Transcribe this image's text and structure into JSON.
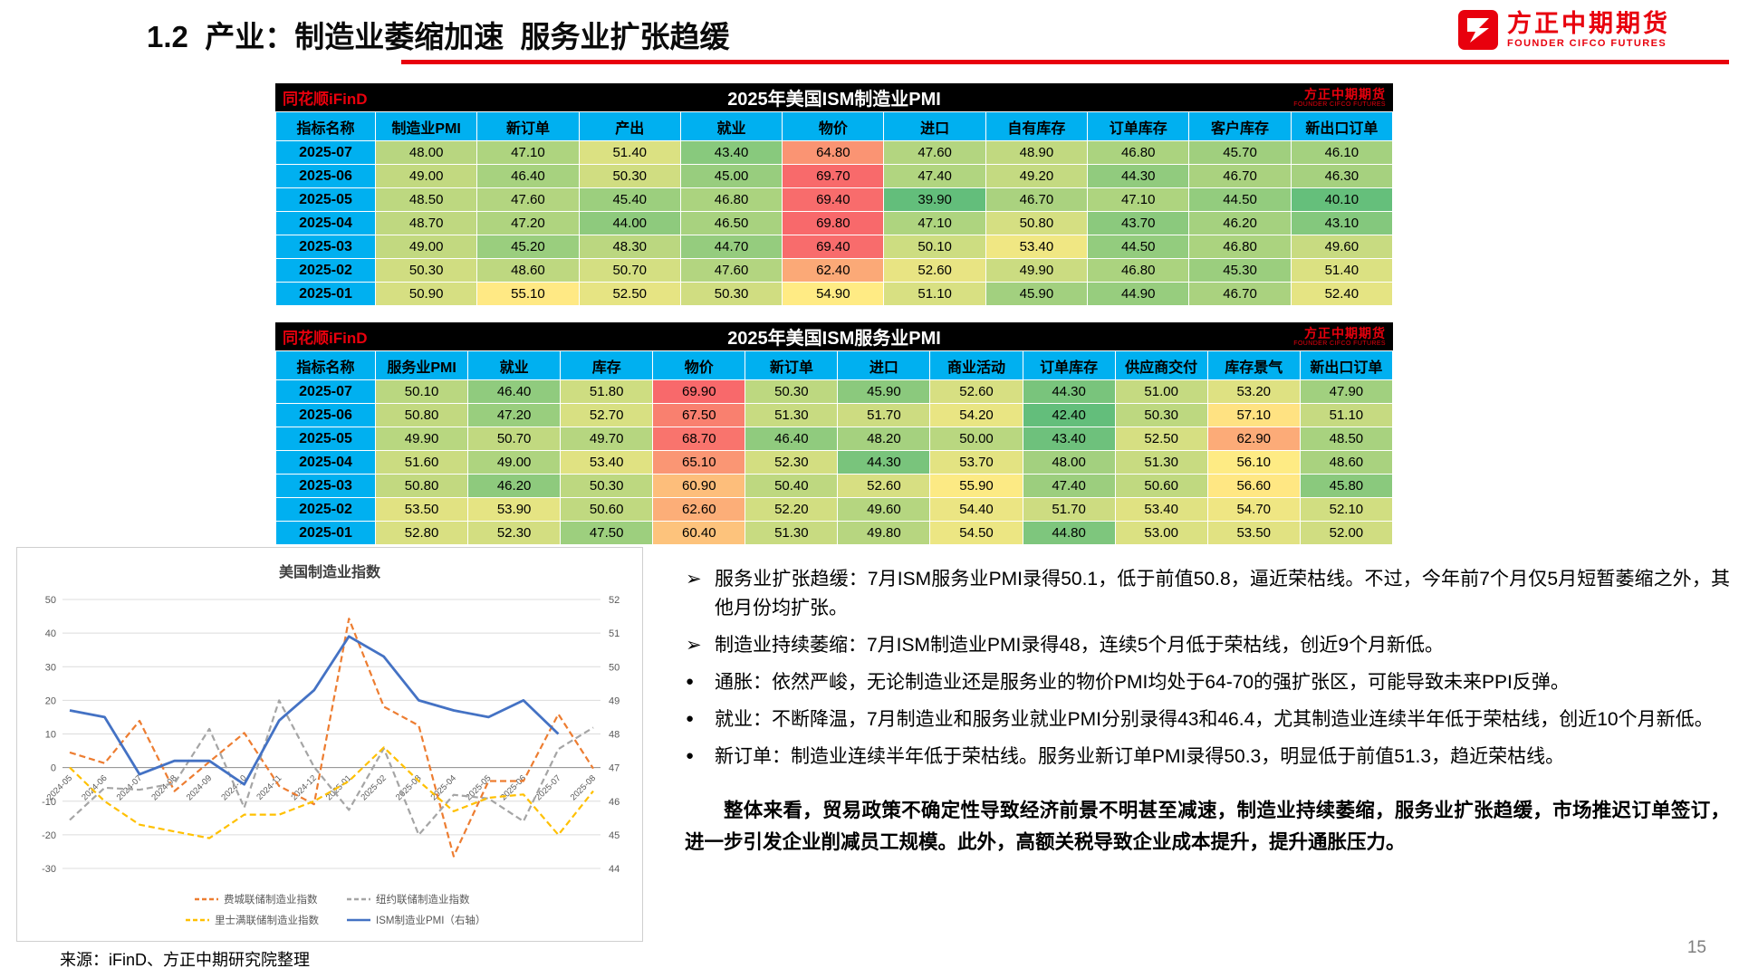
{
  "header": {
    "title": "1.2  产业：制造业萎缩加速  服务业扩张趋缓",
    "brand_cn": "方正中期期货",
    "brand_en": "FOUNDER CIFCO FUTURES",
    "accent_red": "#e8000d",
    "table_header_blue": "#00b0f0"
  },
  "tables": [
    {
      "watermark_left": "同花顺iFinD",
      "title": "2025年美国ISM制造业PMI",
      "watermark_right_cn": "方正中期期货",
      "watermark_right_en": "FOUNDER CIFCO FUTURES",
      "columns": [
        "指标名称",
        "制造业PMI",
        "新订单",
        "产出",
        "就业",
        "物价",
        "进口",
        "自有库存",
        "订单库存",
        "客户库存",
        "新出口订单"
      ],
      "rows": [
        {
          "label": "2025-07",
          "values": [
            48.0,
            47.1,
            51.4,
            43.4,
            64.8,
            47.6,
            48.9,
            46.8,
            45.7,
            46.1
          ]
        },
        {
          "label": "2025-06",
          "values": [
            49.0,
            46.4,
            50.3,
            45.0,
            69.7,
            47.4,
            49.2,
            44.3,
            46.7,
            46.3
          ]
        },
        {
          "label": "2025-05",
          "values": [
            48.5,
            47.6,
            45.4,
            46.8,
            69.4,
            39.9,
            46.7,
            47.1,
            44.5,
            40.1
          ]
        },
        {
          "label": "2025-04",
          "values": [
            48.7,
            47.2,
            44.0,
            46.5,
            69.8,
            47.1,
            50.8,
            43.7,
            46.2,
            43.1
          ]
        },
        {
          "label": "2025-03",
          "values": [
            49.0,
            45.2,
            48.3,
            44.7,
            69.4,
            50.1,
            53.4,
            44.5,
            46.8,
            49.6
          ]
        },
        {
          "label": "2025-02",
          "values": [
            50.3,
            48.6,
            50.7,
            47.6,
            62.4,
            52.6,
            49.9,
            46.8,
            45.3,
            51.4
          ]
        },
        {
          "label": "2025-01",
          "values": [
            50.9,
            55.1,
            52.5,
            50.3,
            54.9,
            51.1,
            45.9,
            44.9,
            46.7,
            52.4
          ]
        }
      ]
    },
    {
      "watermark_left": "同花顺iFinD",
      "title": "2025年美国ISM服务业PMI",
      "watermark_right_cn": "方正中期期货",
      "watermark_right_en": "FOUNDER CIFCO FUTURES",
      "columns": [
        "指标名称",
        "服务业PMI",
        "就业",
        "库存",
        "物价",
        "新订单",
        "进口",
        "商业活动",
        "订单库存",
        "供应商交付",
        "库存景气",
        "新出口订单"
      ],
      "rows": [
        {
          "label": "2025-07",
          "values": [
            50.1,
            46.4,
            51.8,
            69.9,
            50.3,
            45.9,
            52.6,
            44.3,
            51.0,
            53.2,
            47.9
          ]
        },
        {
          "label": "2025-06",
          "values": [
            50.8,
            47.2,
            52.7,
            67.5,
            51.3,
            51.7,
            54.2,
            42.4,
            50.3,
            57.1,
            51.1
          ]
        },
        {
          "label": "2025-05",
          "values": [
            49.9,
            50.7,
            49.7,
            68.7,
            46.4,
            48.2,
            50.0,
            43.4,
            52.5,
            62.9,
            48.5
          ]
        },
        {
          "label": "2025-04",
          "values": [
            51.6,
            49.0,
            53.4,
            65.1,
            52.3,
            44.3,
            53.7,
            48.0,
            51.3,
            56.1,
            48.6
          ]
        },
        {
          "label": "2025-03",
          "values": [
            50.8,
            46.2,
            50.3,
            60.9,
            50.4,
            52.6,
            55.9,
            47.4,
            50.6,
            56.6,
            45.8
          ]
        },
        {
          "label": "2025-02",
          "values": [
            53.5,
            53.9,
            50.6,
            62.6,
            52.2,
            49.6,
            54.4,
            51.7,
            53.4,
            54.7,
            52.1
          ]
        },
        {
          "label": "2025-01",
          "values": [
            52.8,
            52.3,
            47.5,
            60.4,
            51.3,
            49.8,
            54.5,
            44.8,
            53.0,
            53.5,
            52.0
          ]
        }
      ]
    }
  ],
  "chart_data": {
    "type": "line",
    "title": "美国制造业指数",
    "x": [
      "2024-05",
      "2024-06",
      "2024-07",
      "2024-08",
      "2024-09",
      "2024-10",
      "2024-11",
      "2024-12",
      "2025-01",
      "2025-02",
      "2025-03",
      "2025-04",
      "2025-05",
      "2025-06",
      "2025-07",
      "2025-08"
    ],
    "left_axis": {
      "min": -30,
      "max": 50,
      "step": 10
    },
    "right_axis": {
      "min": 44,
      "max": 52,
      "step": 1
    },
    "legend_position": "bottom",
    "series": [
      {
        "name": "费城联储制造业指数",
        "axis": "left",
        "color": "#ED7D31",
        "dash": true,
        "values": [
          4.5,
          1.3,
          13.9,
          -7.0,
          1.7,
          10.3,
          -5.5,
          -10.9,
          44.3,
          18.1,
          12.5,
          -26.4,
          -4.0,
          -4.0,
          15.9,
          -0.3
        ]
      },
      {
        "name": "纽约联储制造业指数",
        "axis": "left",
        "color": "#A5A5A5",
        "dash": true,
        "values": [
          -15.6,
          -6.0,
          -6.6,
          -4.7,
          11.5,
          -11.9,
          20.0,
          0.2,
          -12.6,
          5.7,
          -20.0,
          -8.1,
          -9.2,
          -16.0,
          5.5,
          11.9
        ]
      },
      {
        "name": "里士满联储制造业指数",
        "axis": "left",
        "color": "#FFC000",
        "dash": true,
        "values": [
          0,
          -10,
          -17,
          -19,
          -21,
          -14,
          -14,
          -10,
          -4,
          6,
          -4,
          -13,
          -9,
          -8,
          -20,
          -7
        ]
      },
      {
        "name": "ISM制造业PMI（右轴）",
        "axis": "right",
        "color": "#4472C4",
        "dash": false,
        "values": [
          48.7,
          48.5,
          46.8,
          47.2,
          47.2,
          46.5,
          48.4,
          49.3,
          50.9,
          50.3,
          49.0,
          48.7,
          48.5,
          49.0,
          48.0,
          null
        ]
      }
    ]
  },
  "bullets": [
    {
      "marker": "➢",
      "text": "服务业扩张趋缓：7月ISM服务业PMI录得50.1，低于前值50.8，逼近荣枯线。不过，今年前7个月仅5月短暂萎缩之外，其他月份均扩张。"
    },
    {
      "marker": "➢",
      "text": "制造业持续萎缩：7月ISM制造业PMI录得48，连续5个月低于荣枯线，创近9个月新低。"
    },
    {
      "marker": "●",
      "text": "通胀：依然严峻，无论制造业还是服务业的物价PMI均处于64-70的强扩张区，可能导致未来PPI反弹。"
    },
    {
      "marker": "●",
      "text": "就业：不断降温，7月制造业和服务业就业PMI分别录得43和46.4，尤其制造业连续半年低于荣枯线，创近10个月新低。"
    },
    {
      "marker": "●",
      "text": "新订单：制造业连续半年低于荣枯线。服务业新订单PMI录得50.3，明显低于前值51.3，趋近荣枯线。"
    }
  ],
  "summary": "整体来看，贸易政策不确定性导致经济前景不明甚至减速，制造业持续萎缩，服务业扩张趋缓，市场推迟订单签订，进一步引发企业削减员工规模。此外，高额关税导致企业成本提升，提升通胀压力。",
  "footer": {
    "source": "来源：iFinD、方正中期研究院整理",
    "page_number": "15"
  }
}
